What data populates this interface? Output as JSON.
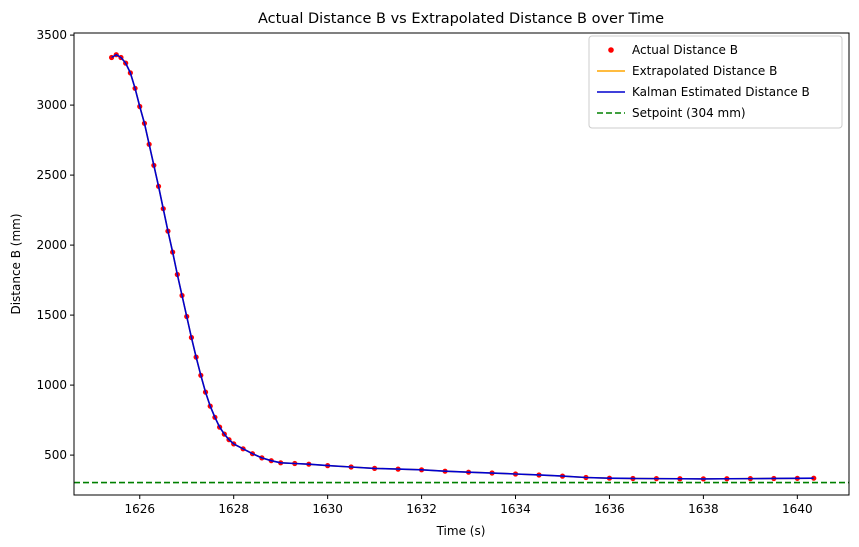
{
  "chart_data": {
    "type": "line",
    "title": "Actual Distance B vs Extrapolated Distance B over Time",
    "xlabel": "Time (s)",
    "ylabel": "Distance B (mm)",
    "xlim": [
      1624.6,
      1641.1
    ],
    "ylim": [
      215,
      3515
    ],
    "xticks": [
      1626,
      1628,
      1630,
      1632,
      1634,
      1636,
      1638,
      1640
    ],
    "xtick_labels": [
      "1626",
      "1628",
      "1630",
      "1632",
      "1634",
      "1636",
      "1638",
      "1640"
    ],
    "yticks": [
      500,
      1000,
      1500,
      2000,
      2500,
      3000,
      3500
    ],
    "ytick_labels": [
      "500",
      "1000",
      "1500",
      "2000",
      "2500",
      "3000",
      "3500"
    ],
    "grid": false,
    "legend": {
      "position": "top-right",
      "entries": [
        {
          "label": "Actual Distance B",
          "kind": "scatter",
          "color": "#ff0000"
        },
        {
          "label": "Extrapolated Distance B",
          "kind": "line",
          "color": "#ffa500"
        },
        {
          "label": "Kalman Estimated Distance B",
          "kind": "line",
          "color": "#0000cd"
        },
        {
          "label": "Setpoint (304 mm)",
          "kind": "dashed",
          "color": "#008000"
        }
      ]
    },
    "series": [
      {
        "name": "Actual Distance B",
        "kind": "scatter",
        "color": "#ff0000",
        "x": [
          1625.4,
          1625.5,
          1625.6,
          1625.7,
          1625.8,
          1625.9,
          1626.0,
          1626.1,
          1626.2,
          1626.3,
          1626.4,
          1626.5,
          1626.6,
          1626.7,
          1626.8,
          1626.9,
          1627.0,
          1627.1,
          1627.2,
          1627.3,
          1627.4,
          1627.5,
          1627.6,
          1627.7,
          1627.8,
          1627.9,
          1628.0,
          1628.2,
          1628.4,
          1628.6,
          1628.8,
          1629.0,
          1629.3,
          1629.6,
          1630.0,
          1630.5,
          1631.0,
          1631.5,
          1632.0,
          1632.5,
          1633.0,
          1633.5,
          1634.0,
          1634.5,
          1635.0,
          1635.5,
          1636.0,
          1636.5,
          1637.0,
          1637.5,
          1638.0,
          1638.5,
          1639.0,
          1639.5,
          1640.0,
          1640.35
        ],
        "y": [
          3340,
          3360,
          3340,
          3300,
          3230,
          3120,
          2990,
          2870,
          2720,
          2570,
          2420,
          2260,
          2100,
          1950,
          1790,
          1640,
          1490,
          1340,
          1200,
          1070,
          950,
          850,
          770,
          700,
          650,
          610,
          580,
          545,
          510,
          480,
          460,
          445,
          440,
          435,
          425,
          415,
          405,
          400,
          395,
          385,
          378,
          372,
          365,
          358,
          350,
          340,
          335,
          333,
          332,
          331,
          330,
          331,
          332,
          333,
          334,
          335
        ]
      },
      {
        "name": "Extrapolated Distance B",
        "kind": "line",
        "color": "#ffa500",
        "x": [
          1625.4,
          1625.5,
          1625.6,
          1625.7,
          1625.8,
          1625.9,
          1626.0,
          1626.1,
          1626.2,
          1626.3,
          1626.4,
          1626.5,
          1626.6,
          1626.7,
          1626.8,
          1626.9,
          1627.0,
          1627.1,
          1627.2,
          1627.3,
          1627.4,
          1627.5,
          1627.6,
          1627.7,
          1627.8,
          1627.9,
          1628.0,
          1628.2,
          1628.4,
          1628.6,
          1628.8,
          1629.0,
          1629.3,
          1629.6,
          1630.0,
          1630.5,
          1631.0,
          1631.5,
          1632.0,
          1632.5,
          1633.0,
          1633.5,
          1634.0,
          1634.5,
          1635.0,
          1635.5,
          1636.0,
          1636.5,
          1637.0,
          1637.5,
          1638.0,
          1638.5,
          1639.0,
          1639.5,
          1640.0,
          1640.35
        ],
        "y": [
          3340,
          3360,
          3340,
          3300,
          3230,
          3120,
          2990,
          2870,
          2720,
          2570,
          2420,
          2260,
          2100,
          1950,
          1790,
          1640,
          1490,
          1340,
          1200,
          1070,
          950,
          850,
          770,
          700,
          650,
          610,
          580,
          545,
          510,
          480,
          460,
          445,
          440,
          435,
          425,
          415,
          405,
          400,
          395,
          385,
          378,
          372,
          365,
          358,
          350,
          340,
          335,
          333,
          332,
          331,
          330,
          331,
          332,
          333,
          334,
          335
        ]
      },
      {
        "name": "Kalman Estimated Distance B",
        "kind": "line",
        "color": "#0000cd",
        "x": [
          1625.4,
          1625.5,
          1625.6,
          1625.7,
          1625.8,
          1625.9,
          1626.0,
          1626.1,
          1626.2,
          1626.3,
          1626.4,
          1626.5,
          1626.6,
          1626.7,
          1626.8,
          1626.9,
          1627.0,
          1627.1,
          1627.2,
          1627.3,
          1627.4,
          1627.5,
          1627.6,
          1627.7,
          1627.8,
          1627.9,
          1628.0,
          1628.2,
          1628.4,
          1628.6,
          1628.8,
          1629.0,
          1629.3,
          1629.6,
          1630.0,
          1630.5,
          1631.0,
          1631.5,
          1632.0,
          1632.5,
          1633.0,
          1633.5,
          1634.0,
          1634.5,
          1635.0,
          1635.5,
          1636.0,
          1636.5,
          1637.0,
          1637.5,
          1638.0,
          1638.5,
          1639.0,
          1639.5,
          1640.0,
          1640.35
        ],
        "y": [
          3340,
          3360,
          3340,
          3300,
          3230,
          3120,
          2990,
          2870,
          2720,
          2570,
          2420,
          2260,
          2100,
          1950,
          1790,
          1640,
          1490,
          1340,
          1200,
          1070,
          950,
          850,
          770,
          700,
          650,
          610,
          580,
          545,
          510,
          480,
          460,
          445,
          440,
          435,
          425,
          415,
          405,
          400,
          395,
          385,
          378,
          372,
          365,
          358,
          350,
          340,
          335,
          333,
          332,
          331,
          330,
          331,
          332,
          333,
          334,
          335
        ]
      },
      {
        "name": "Setpoint (304 mm)",
        "kind": "hline",
        "color": "#008000",
        "y": 304
      }
    ]
  }
}
